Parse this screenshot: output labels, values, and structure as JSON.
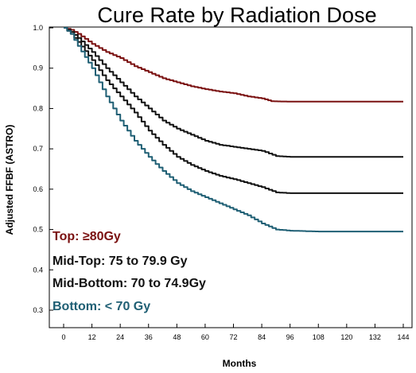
{
  "chart_data": {
    "type": "line",
    "title": "Cure Rate by Radiation Dose",
    "xlabel": "Months",
    "ylabel": "Adjusted FFBF (ASTRO)",
    "xlim": [
      0,
      144
    ],
    "ylim": [
      0.25,
      1.0
    ],
    "x_ticks": [
      0,
      12,
      24,
      36,
      48,
      60,
      72,
      84,
      96,
      108,
      120,
      132,
      144
    ],
    "y_ticks": [
      "1.0",
      "0.9",
      "0.8",
      "0.7",
      "0.6",
      "0.5",
      "0.4",
      "0.3"
    ],
    "y_tick_values": [
      1.0,
      0.9,
      0.8,
      0.7,
      0.6,
      0.5,
      0.4,
      0.3
    ],
    "grid": false,
    "legend_position": "bottom-left",
    "series": [
      {
        "name": "Top: ≥80Gy",
        "color": "#7a1010",
        "x": [
          0,
          3,
          6,
          12,
          18,
          24,
          30,
          36,
          42,
          48,
          54,
          60,
          66,
          72,
          78,
          84,
          88,
          96,
          108,
          120,
          132,
          144
        ],
        "y": [
          1.0,
          0.995,
          0.985,
          0.96,
          0.94,
          0.925,
          0.905,
          0.89,
          0.875,
          0.865,
          0.855,
          0.848,
          0.842,
          0.838,
          0.83,
          0.825,
          0.818,
          0.817,
          0.817,
          0.817,
          0.817,
          0.817
        ]
      },
      {
        "name": "Mid-Top: 75 to 79.9 Gy",
        "color": "#111111",
        "x": [
          0,
          3,
          6,
          12,
          18,
          24,
          30,
          36,
          42,
          48,
          54,
          60,
          66,
          72,
          78,
          84,
          90,
          96,
          108,
          120,
          132,
          144
        ],
        "y": [
          1.0,
          0.99,
          0.975,
          0.94,
          0.9,
          0.865,
          0.83,
          0.8,
          0.77,
          0.75,
          0.735,
          0.72,
          0.71,
          0.705,
          0.7,
          0.695,
          0.682,
          0.68,
          0.68,
          0.68,
          0.68,
          0.68
        ]
      },
      {
        "name": "Mid-Bottom: 70 to 74.9Gy",
        "color": "#111111",
        "x": [
          0,
          3,
          6,
          12,
          18,
          24,
          30,
          36,
          42,
          48,
          54,
          60,
          66,
          72,
          78,
          84,
          90,
          96,
          108,
          120,
          132,
          144
        ],
        "y": [
          1.0,
          0.985,
          0.965,
          0.92,
          0.87,
          0.83,
          0.79,
          0.745,
          0.71,
          0.68,
          0.66,
          0.645,
          0.633,
          0.625,
          0.615,
          0.605,
          0.592,
          0.59,
          0.59,
          0.59,
          0.59,
          0.59
        ]
      },
      {
        "name": "Bottom: < 70 Gy",
        "color": "#1f5f74",
        "x": [
          0,
          3,
          6,
          12,
          18,
          24,
          30,
          36,
          42,
          48,
          54,
          60,
          66,
          72,
          78,
          84,
          90,
          96,
          108,
          120,
          132,
          144
        ],
        "y": [
          1.0,
          0.985,
          0.955,
          0.9,
          0.83,
          0.77,
          0.72,
          0.68,
          0.645,
          0.615,
          0.595,
          0.58,
          0.565,
          0.55,
          0.535,
          0.515,
          0.5,
          0.497,
          0.495,
          0.495,
          0.495,
          0.495
        ]
      }
    ]
  }
}
